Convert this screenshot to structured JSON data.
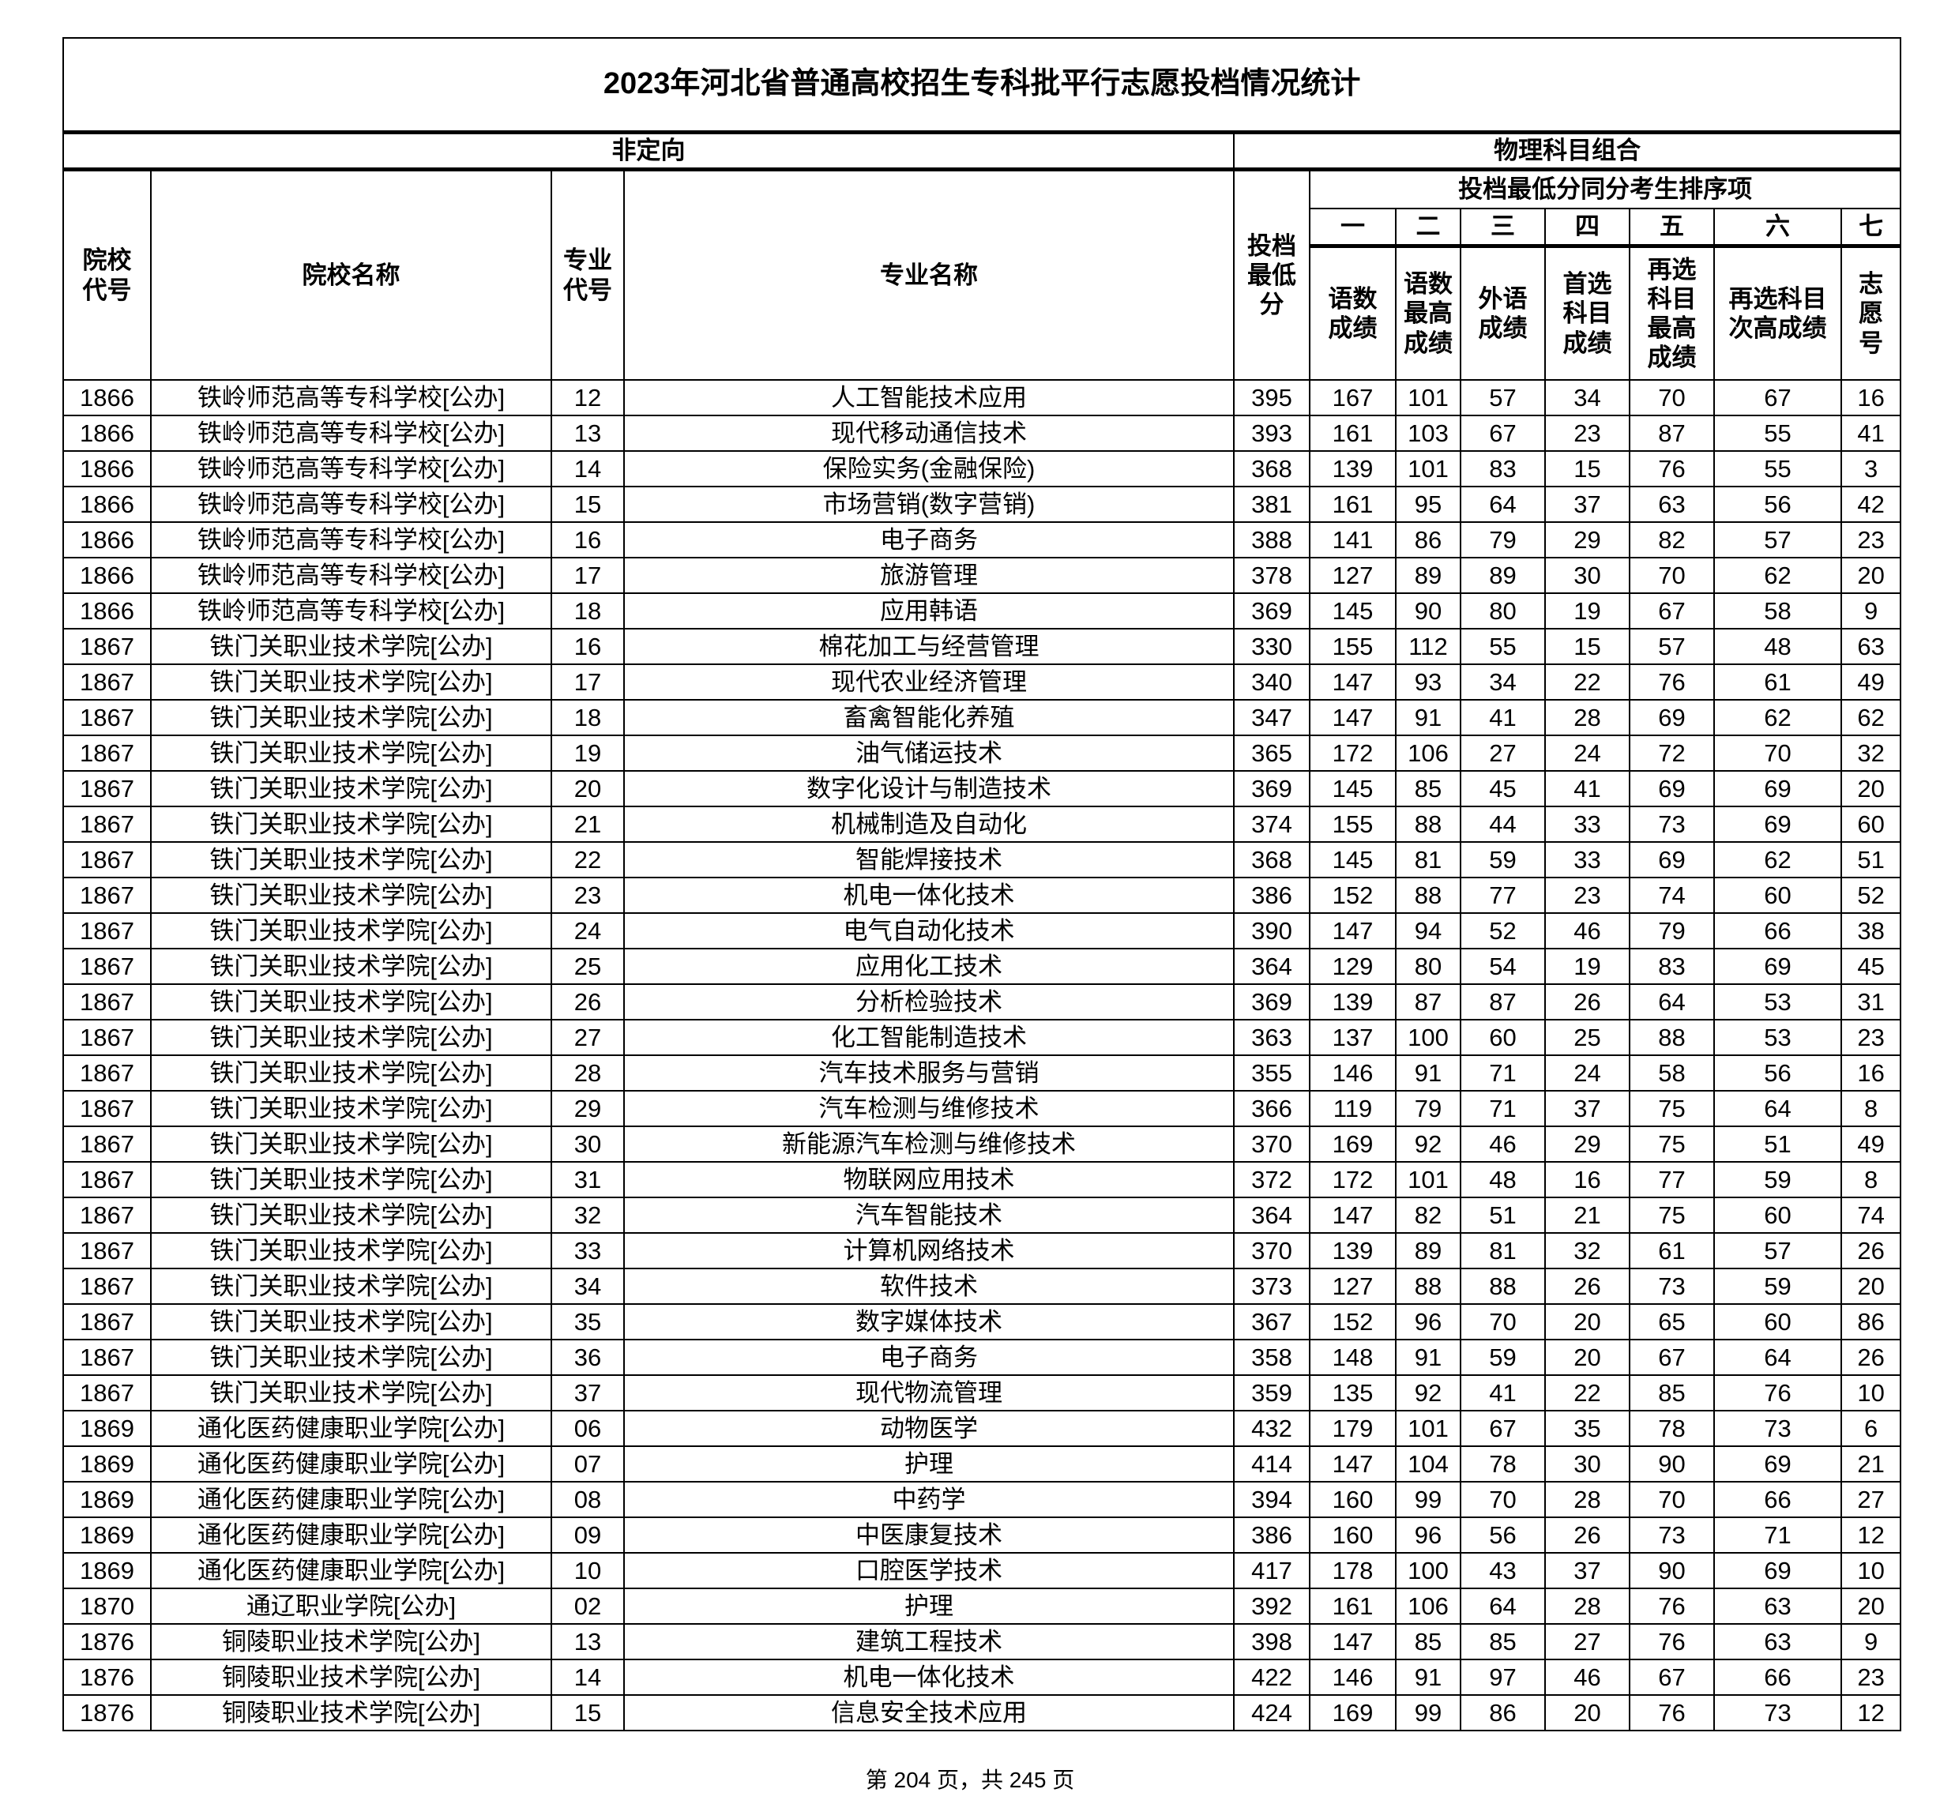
{
  "title": "2023年河北省普通高校招生专科批平行志愿投档情况统计",
  "header": {
    "group_left": "非定向",
    "group_right": "物理科目组合",
    "tie_break_group": "投档最低分同分考生排序项",
    "school_code": "院校代号",
    "school_name": "院校名称",
    "major_code": "专业代号",
    "major_name": "专业名称",
    "min_score": "投档最低分",
    "order_numbers": [
      "一",
      "二",
      "三",
      "四",
      "五",
      "六",
      "七"
    ],
    "order_labels": [
      "语数成绩",
      "语数最高成绩",
      "外语成绩",
      "首选科目成绩",
      "再选科目最高成绩",
      "再选科目次高成绩",
      "志愿号"
    ]
  },
  "rows": [
    [
      "1866",
      "铁岭师范高等专科学校[公办]",
      "12",
      "人工智能技术应用",
      "395",
      "167",
      "101",
      "57",
      "34",
      "70",
      "67",
      "16"
    ],
    [
      "1866",
      "铁岭师范高等专科学校[公办]",
      "13",
      "现代移动通信技术",
      "393",
      "161",
      "103",
      "67",
      "23",
      "87",
      "55",
      "41"
    ],
    [
      "1866",
      "铁岭师范高等专科学校[公办]",
      "14",
      "保险实务(金融保险)",
      "368",
      "139",
      "101",
      "83",
      "15",
      "76",
      "55",
      "3"
    ],
    [
      "1866",
      "铁岭师范高等专科学校[公办]",
      "15",
      "市场营销(数字营销)",
      "381",
      "161",
      "95",
      "64",
      "37",
      "63",
      "56",
      "42"
    ],
    [
      "1866",
      "铁岭师范高等专科学校[公办]",
      "16",
      "电子商务",
      "388",
      "141",
      "86",
      "79",
      "29",
      "82",
      "57",
      "23"
    ],
    [
      "1866",
      "铁岭师范高等专科学校[公办]",
      "17",
      "旅游管理",
      "378",
      "127",
      "89",
      "89",
      "30",
      "70",
      "62",
      "20"
    ],
    [
      "1866",
      "铁岭师范高等专科学校[公办]",
      "18",
      "应用韩语",
      "369",
      "145",
      "90",
      "80",
      "19",
      "67",
      "58",
      "9"
    ],
    [
      "1867",
      "铁门关职业技术学院[公办]",
      "16",
      "棉花加工与经营管理",
      "330",
      "155",
      "112",
      "55",
      "15",
      "57",
      "48",
      "63"
    ],
    [
      "1867",
      "铁门关职业技术学院[公办]",
      "17",
      "现代农业经济管理",
      "340",
      "147",
      "93",
      "34",
      "22",
      "76",
      "61",
      "49"
    ],
    [
      "1867",
      "铁门关职业技术学院[公办]",
      "18",
      "畜禽智能化养殖",
      "347",
      "147",
      "91",
      "41",
      "28",
      "69",
      "62",
      "62"
    ],
    [
      "1867",
      "铁门关职业技术学院[公办]",
      "19",
      "油气储运技术",
      "365",
      "172",
      "106",
      "27",
      "24",
      "72",
      "70",
      "32"
    ],
    [
      "1867",
      "铁门关职业技术学院[公办]",
      "20",
      "数字化设计与制造技术",
      "369",
      "145",
      "85",
      "45",
      "41",
      "69",
      "69",
      "20"
    ],
    [
      "1867",
      "铁门关职业技术学院[公办]",
      "21",
      "机械制造及自动化",
      "374",
      "155",
      "88",
      "44",
      "33",
      "73",
      "69",
      "60"
    ],
    [
      "1867",
      "铁门关职业技术学院[公办]",
      "22",
      "智能焊接技术",
      "368",
      "145",
      "81",
      "59",
      "33",
      "69",
      "62",
      "51"
    ],
    [
      "1867",
      "铁门关职业技术学院[公办]",
      "23",
      "机电一体化技术",
      "386",
      "152",
      "88",
      "77",
      "23",
      "74",
      "60",
      "52"
    ],
    [
      "1867",
      "铁门关职业技术学院[公办]",
      "24",
      "电气自动化技术",
      "390",
      "147",
      "94",
      "52",
      "46",
      "79",
      "66",
      "38"
    ],
    [
      "1867",
      "铁门关职业技术学院[公办]",
      "25",
      "应用化工技术",
      "364",
      "129",
      "80",
      "54",
      "19",
      "83",
      "69",
      "45"
    ],
    [
      "1867",
      "铁门关职业技术学院[公办]",
      "26",
      "分析检验技术",
      "369",
      "139",
      "87",
      "87",
      "26",
      "64",
      "53",
      "31"
    ],
    [
      "1867",
      "铁门关职业技术学院[公办]",
      "27",
      "化工智能制造技术",
      "363",
      "137",
      "100",
      "60",
      "25",
      "88",
      "53",
      "23"
    ],
    [
      "1867",
      "铁门关职业技术学院[公办]",
      "28",
      "汽车技术服务与营销",
      "355",
      "146",
      "91",
      "71",
      "24",
      "58",
      "56",
      "16"
    ],
    [
      "1867",
      "铁门关职业技术学院[公办]",
      "29",
      "汽车检测与维修技术",
      "366",
      "119",
      "79",
      "71",
      "37",
      "75",
      "64",
      "8"
    ],
    [
      "1867",
      "铁门关职业技术学院[公办]",
      "30",
      "新能源汽车检测与维修技术",
      "370",
      "169",
      "92",
      "46",
      "29",
      "75",
      "51",
      "49"
    ],
    [
      "1867",
      "铁门关职业技术学院[公办]",
      "31",
      "物联网应用技术",
      "372",
      "172",
      "101",
      "48",
      "16",
      "77",
      "59",
      "8"
    ],
    [
      "1867",
      "铁门关职业技术学院[公办]",
      "32",
      "汽车智能技术",
      "364",
      "147",
      "82",
      "51",
      "21",
      "75",
      "60",
      "74"
    ],
    [
      "1867",
      "铁门关职业技术学院[公办]",
      "33",
      "计算机网络技术",
      "370",
      "139",
      "89",
      "81",
      "32",
      "61",
      "57",
      "26"
    ],
    [
      "1867",
      "铁门关职业技术学院[公办]",
      "34",
      "软件技术",
      "373",
      "127",
      "88",
      "88",
      "26",
      "73",
      "59",
      "20"
    ],
    [
      "1867",
      "铁门关职业技术学院[公办]",
      "35",
      "数字媒体技术",
      "367",
      "152",
      "96",
      "70",
      "20",
      "65",
      "60",
      "86"
    ],
    [
      "1867",
      "铁门关职业技术学院[公办]",
      "36",
      "电子商务",
      "358",
      "148",
      "91",
      "59",
      "20",
      "67",
      "64",
      "26"
    ],
    [
      "1867",
      "铁门关职业技术学院[公办]",
      "37",
      "现代物流管理",
      "359",
      "135",
      "92",
      "41",
      "22",
      "85",
      "76",
      "10"
    ],
    [
      "1869",
      "通化医药健康职业学院[公办]",
      "06",
      "动物医学",
      "432",
      "179",
      "101",
      "67",
      "35",
      "78",
      "73",
      "6"
    ],
    [
      "1869",
      "通化医药健康职业学院[公办]",
      "07",
      "护理",
      "414",
      "147",
      "104",
      "78",
      "30",
      "90",
      "69",
      "21"
    ],
    [
      "1869",
      "通化医药健康职业学院[公办]",
      "08",
      "中药学",
      "394",
      "160",
      "99",
      "70",
      "28",
      "70",
      "66",
      "27"
    ],
    [
      "1869",
      "通化医药健康职业学院[公办]",
      "09",
      "中医康复技术",
      "386",
      "160",
      "96",
      "56",
      "26",
      "73",
      "71",
      "12"
    ],
    [
      "1869",
      "通化医药健康职业学院[公办]",
      "10",
      "口腔医学技术",
      "417",
      "178",
      "100",
      "43",
      "37",
      "90",
      "69",
      "10"
    ],
    [
      "1870",
      "通辽职业学院[公办]",
      "02",
      "护理",
      "392",
      "161",
      "106",
      "64",
      "28",
      "76",
      "63",
      "20"
    ],
    [
      "1876",
      "铜陵职业技术学院[公办]",
      "13",
      "建筑工程技术",
      "398",
      "147",
      "85",
      "85",
      "27",
      "76",
      "63",
      "9"
    ],
    [
      "1876",
      "铜陵职业技术学院[公办]",
      "14",
      "机电一体化技术",
      "422",
      "146",
      "91",
      "97",
      "46",
      "67",
      "66",
      "23"
    ],
    [
      "1876",
      "铜陵职业技术学院[公办]",
      "15",
      "信息安全技术应用",
      "424",
      "169",
      "99",
      "86",
      "20",
      "76",
      "73",
      "12"
    ]
  ],
  "footer": "第 204 页，共 245 页"
}
